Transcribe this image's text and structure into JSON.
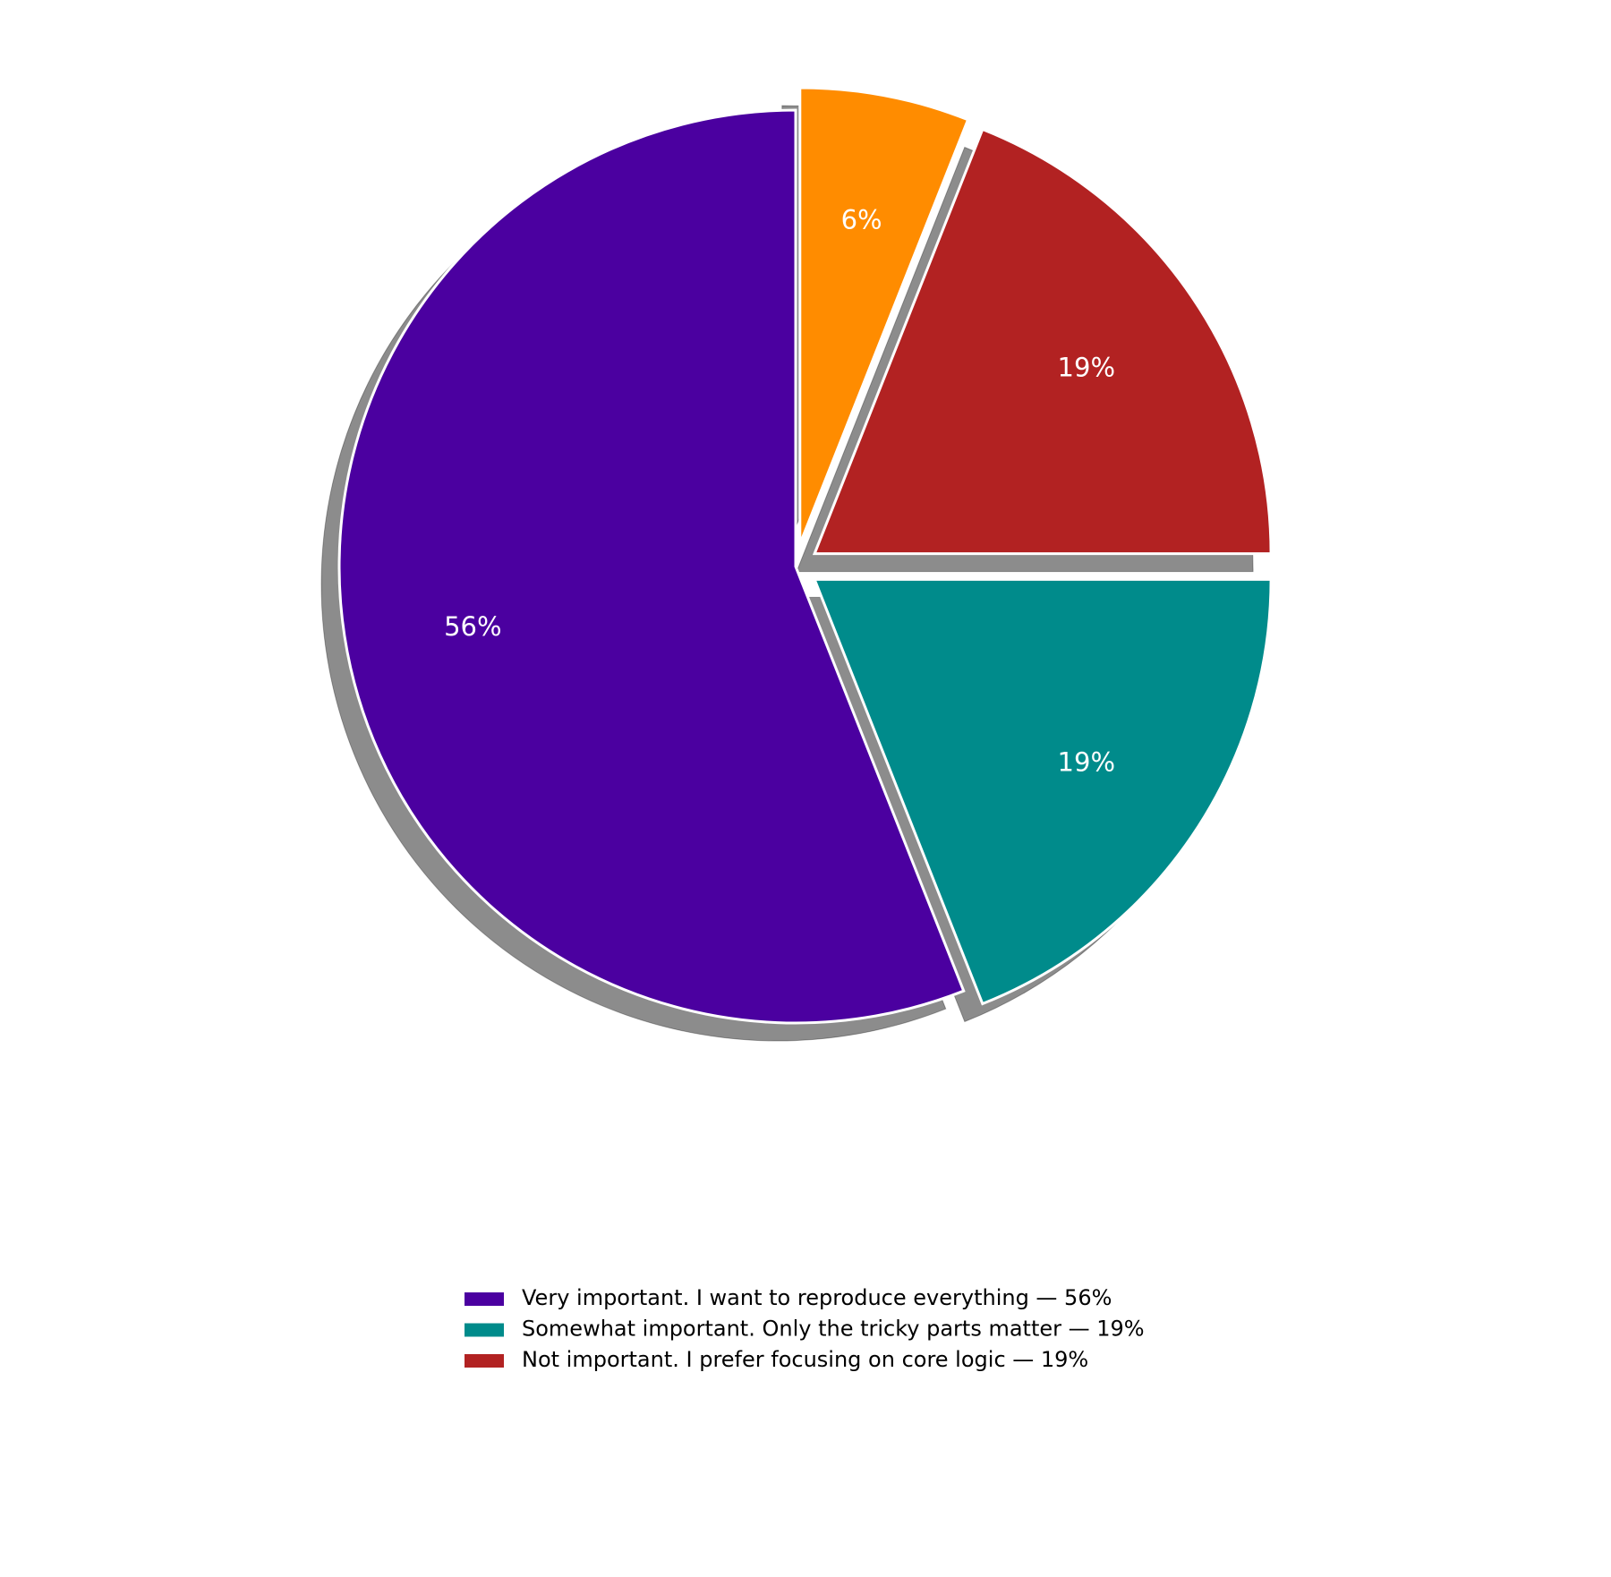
{
  "chart_data": {
    "type": "pie",
    "categories": [
      "Very important. I want to reproduce everything — 56%",
      "Somewhat important. Only the tricky parts matter — 19%",
      "Not important. I prefer focusing on core logic — 19%",
      null
    ],
    "values": [
      56,
      19,
      19,
      6
    ],
    "value_labels": [
      "56%",
      "19%",
      "19%",
      "6%"
    ],
    "colors": [
      "#4b00a0",
      "#008b8b",
      "#b22222",
      "#ff8c00"
    ],
    "startangle": 90,
    "counterclock": true,
    "shadow": true,
    "explode": [
      0,
      0.05,
      0.05,
      0.05
    ],
    "legend": "lower center"
  }
}
